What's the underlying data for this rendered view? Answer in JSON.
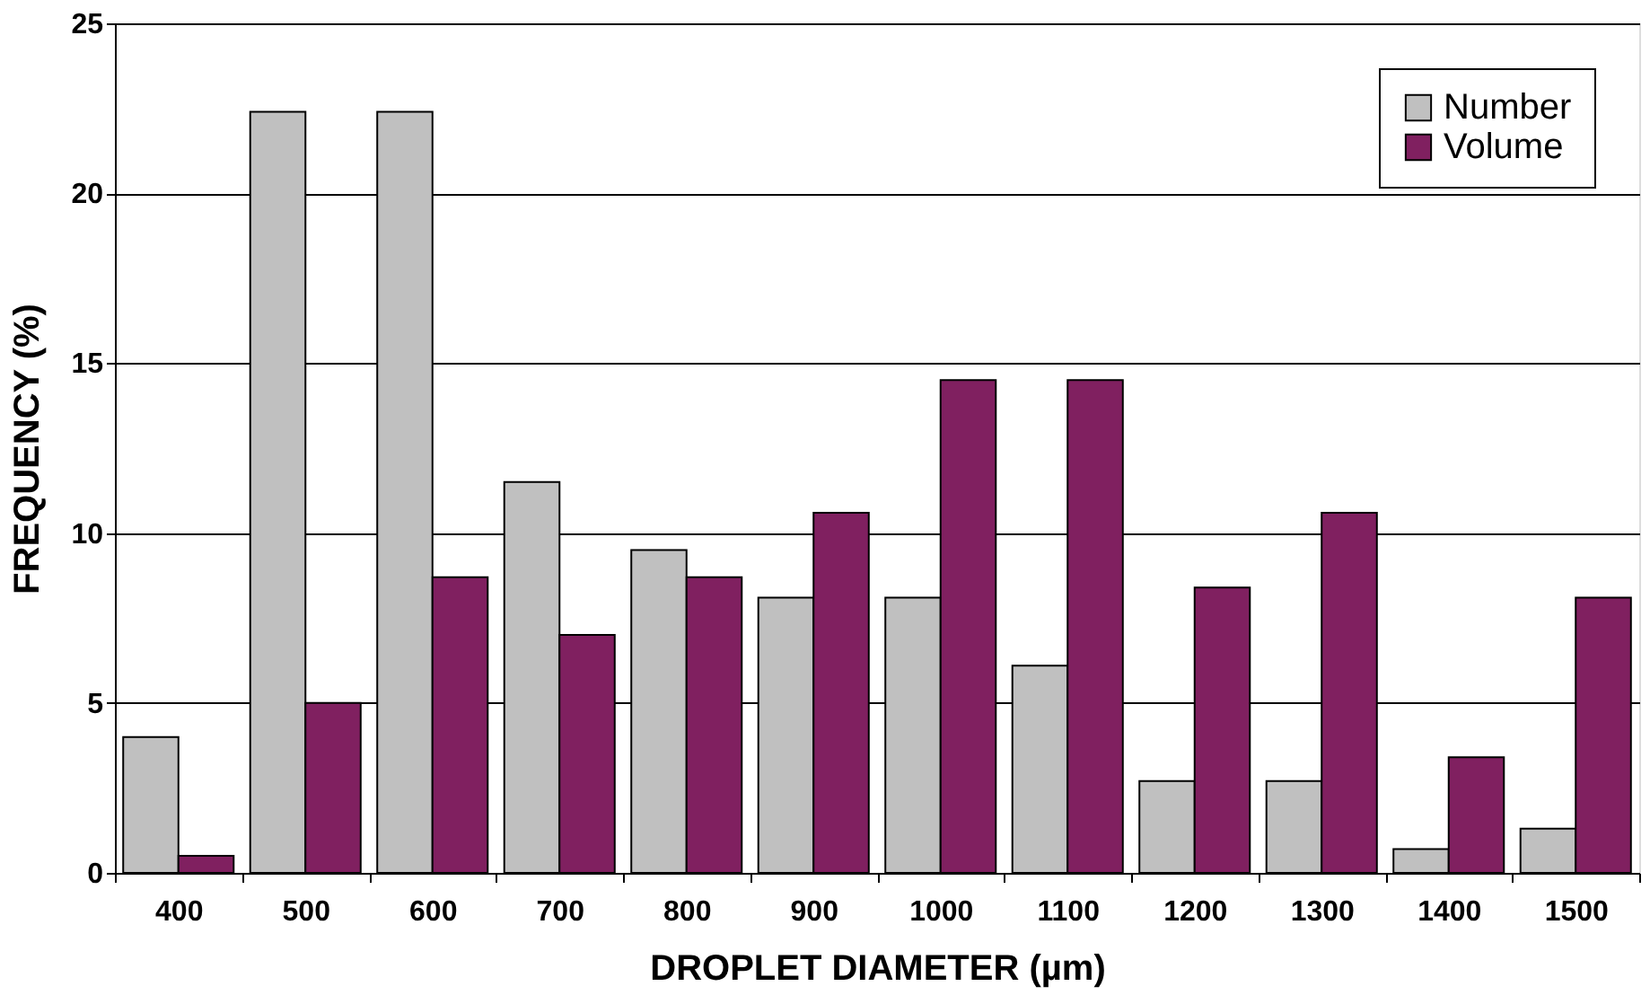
{
  "chart_data": {
    "type": "bar",
    "xlabel": "DROPLET DIAMETER (µm)",
    "ylabel": "FREQUENCY (%)",
    "categories": [
      "400",
      "500",
      "600",
      "700",
      "800",
      "900",
      "1000",
      "1100",
      "1200",
      "1300",
      "1400",
      "1500"
    ],
    "series": [
      {
        "name": "Number",
        "color": "#c0c0c0",
        "values": [
          4.0,
          22.4,
          22.4,
          11.5,
          9.5,
          8.1,
          8.1,
          6.1,
          2.7,
          2.7,
          0.7,
          1.3
        ]
      },
      {
        "name": "Volume",
        "color": "#802060",
        "values": [
          0.5,
          5.0,
          8.7,
          7.0,
          8.7,
          10.6,
          14.5,
          14.5,
          8.4,
          10.6,
          3.4,
          8.1
        ]
      }
    ],
    "ylim": [
      0,
      25
    ],
    "yticks": [
      0,
      5,
      10,
      15,
      20,
      25
    ],
    "grid": "y",
    "legend": "top right"
  }
}
